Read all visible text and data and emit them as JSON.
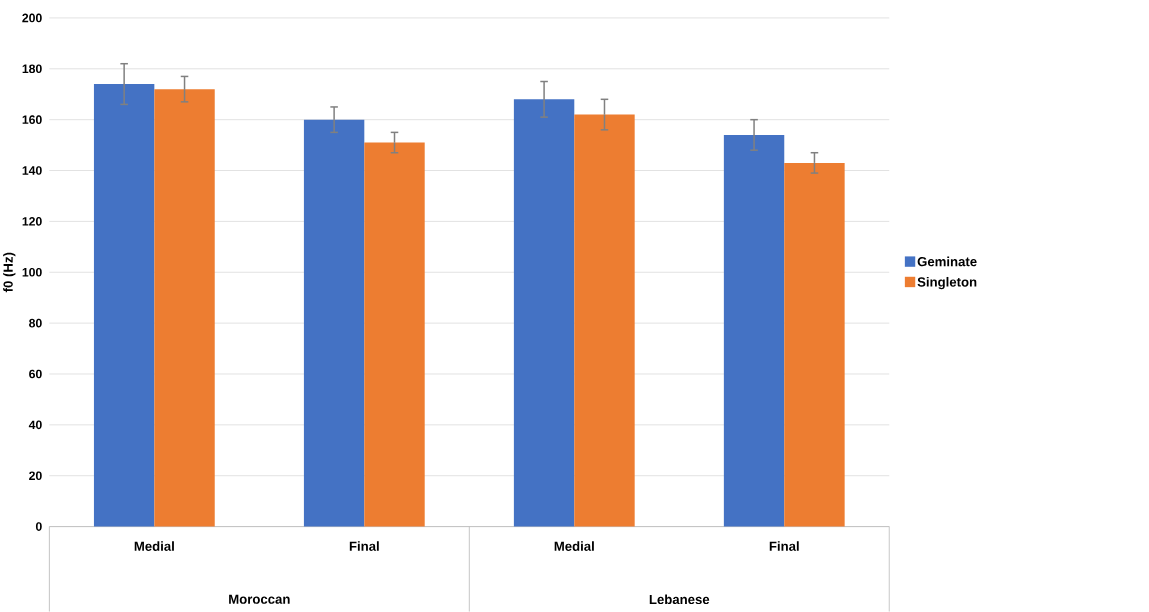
{
  "chart_data": {
    "type": "bar",
    "ylabel": "f0 (Hz)",
    "categories": [
      "Medial",
      "Final",
      "Medial",
      "Final"
    ],
    "annotations": [
      "Moroccan",
      "Lebanese"
    ],
    "series": [
      {
        "name": "Geminate",
        "color": "#4472c4",
        "values": [
          174,
          160,
          168,
          154
        ],
        "errors": [
          8,
          5,
          7,
          6
        ]
      },
      {
        "name": "Singleton",
        "color": "#ed7d31",
        "values": [
          172,
          151,
          162,
          143
        ],
        "errors": [
          5,
          4,
          6,
          4
        ]
      }
    ],
    "ylim": [
      0,
      200
    ],
    "yticks": [
      0,
      20,
      40,
      60,
      80,
      100,
      120,
      140,
      160,
      180,
      200
    ],
    "grid": "y",
    "legend": "right"
  }
}
